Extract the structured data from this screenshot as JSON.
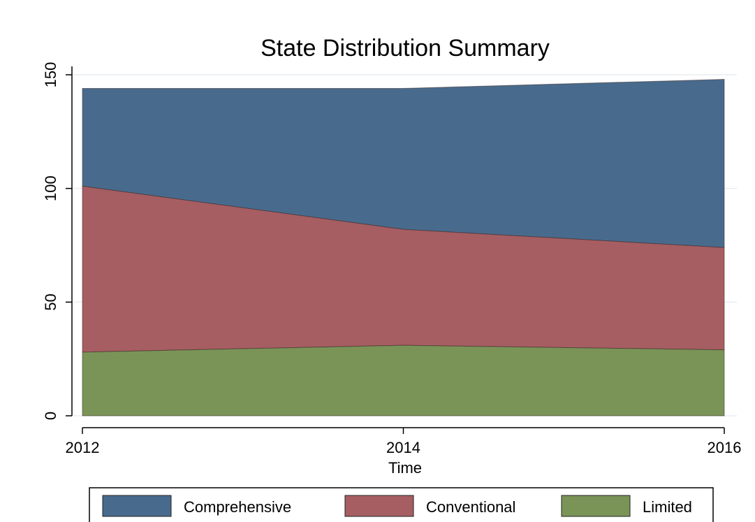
{
  "chart_data": {
    "type": "area",
    "stacked": true,
    "title": "State Distribution Summary",
    "xlabel": "Time",
    "ylabel": "",
    "x": [
      2012,
      2014,
      2016
    ],
    "xlim": [
      2012,
      2016
    ],
    "ylim": [
      0,
      150
    ],
    "xticks": [
      2012,
      2014,
      2016
    ],
    "yticks": [
      0,
      50,
      100,
      150
    ],
    "grid": true,
    "legend_position": "bottom",
    "series": [
      {
        "name": "Limited",
        "values": [
          28,
          31,
          29
        ],
        "color": "#7a9458"
      },
      {
        "name": "Conventional",
        "values": [
          73,
          51,
          45
        ],
        "color": "#a65e62"
      },
      {
        "name": "Comprehensive",
        "values": [
          43,
          62,
          74
        ],
        "color": "#486b8d"
      }
    ],
    "legend_order": [
      "Comprehensive",
      "Conventional",
      "Limited"
    ]
  }
}
